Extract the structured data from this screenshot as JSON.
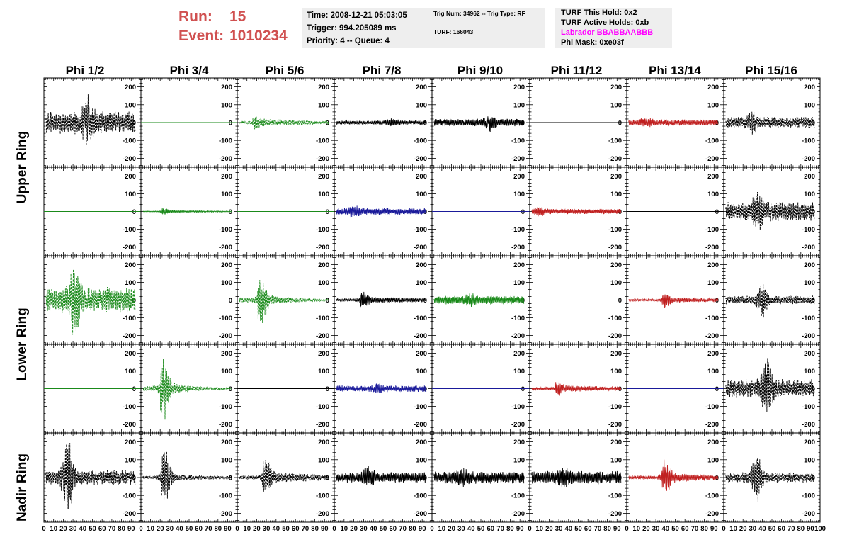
{
  "run": {
    "run_label": "Run:",
    "run_value": "15",
    "event_label": "Event:",
    "event_value": "1010234"
  },
  "info_time": {
    "line1": "Time: 2008-12-21 05:03:05",
    "line2": "Trigger: 994.205089 ms",
    "line3": "Priority: 4 -- Queue: 4"
  },
  "info_trig": {
    "line1": "Trig Num: 34962 -- Trig Type: RF",
    "line2": "TURF: 166043"
  },
  "info_turf": {
    "line1": "TURF This Hold: 0x2",
    "line2": "TURF Active Holds: 0xb",
    "line3": "Labrador BBABBAABBB",
    "line4": "Phi Mask: 0xe03f"
  },
  "colors": {
    "green": "#1a8a1a",
    "black": "#000000",
    "red": "#c02020",
    "blue": "#1a1a9a",
    "run_text": "#d05050",
    "labrador": "#ff00ff",
    "panel_bg": "#eeeeee"
  },
  "chart_data": {
    "type": "line",
    "columns": [
      "Phi 1/2",
      "Phi 3/4",
      "Phi 5/6",
      "Phi 7/8",
      "Phi 9/10",
      "Phi 11/12",
      "Phi 13/14",
      "Phi 15/16"
    ],
    "ring_labels": [
      {
        "text": "Upper Ring",
        "rows": [
          0,
          1
        ]
      },
      {
        "text": "Lower Ring",
        "rows": [
          2,
          3
        ]
      },
      {
        "text": "Nadir Ring",
        "rows": [
          4,
          4
        ]
      }
    ],
    "xlim": [
      0,
      100
    ],
    "ylim": [
      -250,
      250
    ],
    "x_ticks": [
      0,
      10,
      20,
      30,
      40,
      50,
      60,
      70,
      80,
      90,
      100
    ],
    "x_tick_labels": [
      "0",
      "10",
      "20",
      "30",
      "40",
      "50",
      "60",
      "70",
      "80",
      "90",
      "100"
    ],
    "y_ticks": [
      -200,
      -100,
      0,
      100,
      200
    ],
    "y_tick_labels": [
      "-200",
      "-100",
      "0",
      "100",
      "200"
    ],
    "waveforms": [
      [
        {
          "color": "black",
          "style": "dashed",
          "amp": 65,
          "peak": 160,
          "peak_x": 45,
          "decay": 0
        },
        {
          "color": "green",
          "style": "flat"
        },
        {
          "color": "green",
          "style": "dashed",
          "amp": 22,
          "peak": 40,
          "peak_x": 20,
          "decay": 0.2
        },
        {
          "color": "black",
          "style": "solid",
          "amp": 12,
          "peak": 25,
          "peak_x": 60,
          "decay": 0
        },
        {
          "color": "black",
          "style": "solid",
          "amp": 22,
          "peak": 55,
          "peak_x": 60,
          "decay": 0
        },
        {
          "color": "black",
          "style": "flat"
        },
        {
          "color": "red",
          "style": "solid",
          "amp": 18,
          "peak": 35,
          "peak_x": 20,
          "decay": 0
        },
        {
          "color": "black",
          "style": "dashed",
          "amp": 32,
          "peak": 70,
          "peak_x": 30,
          "decay": 0
        }
      ],
      [
        {
          "color": "green",
          "style": "flat"
        },
        {
          "color": "green",
          "style": "solid",
          "amp": 8,
          "peak": 22,
          "peak_x": 25,
          "decay": 0.3
        },
        {
          "color": "green",
          "style": "flat"
        },
        {
          "color": "blue",
          "style": "solid",
          "amp": 20,
          "peak": 40,
          "peak_x": 20,
          "decay": 0
        },
        {
          "color": "blue",
          "style": "flat"
        },
        {
          "color": "red",
          "style": "solid",
          "amp": 15,
          "peak": 30,
          "peak_x": 10,
          "decay": 0
        },
        {
          "color": "black",
          "style": "flat"
        },
        {
          "color": "black",
          "style": "dashed",
          "amp": 55,
          "peak": 125,
          "peak_x": 35,
          "decay": 0
        }
      ],
      [
        {
          "color": "green",
          "style": "dashed",
          "amp": 75,
          "peak": 250,
          "peak_x": 32,
          "decay": 0
        },
        {
          "color": "green",
          "style": "flat"
        },
        {
          "color": "green",
          "style": "dashed",
          "amp": 40,
          "peak": 160,
          "peak_x": 25,
          "decay": 0.5
        },
        {
          "color": "black",
          "style": "solid",
          "amp": 22,
          "peak": 60,
          "peak_x": 30,
          "decay": 0.2
        },
        {
          "color": "green",
          "style": "solid",
          "amp": 25,
          "peak": 45,
          "peak_x": 40,
          "decay": 0
        },
        {
          "color": "green",
          "style": "flat"
        },
        {
          "color": "red",
          "style": "solid",
          "amp": 18,
          "peak": 50,
          "peak_x": 40,
          "decay": 0.2
        },
        {
          "color": "black",
          "style": "dashed",
          "amp": 25,
          "peak": 110,
          "peak_x": 40,
          "decay": 0
        }
      ],
      [
        {
          "color": "green",
          "style": "flat"
        },
        {
          "color": "green",
          "style": "dashed",
          "amp": 45,
          "peak": 190,
          "peak_x": 24,
          "decay": 0.55
        },
        {
          "color": "black",
          "style": "flat"
        },
        {
          "color": "blue",
          "style": "solid",
          "amp": 18,
          "peak": 35,
          "peak_x": 45,
          "decay": 0
        },
        {
          "color": "blue",
          "style": "flat"
        },
        {
          "color": "red",
          "style": "solid",
          "amp": 22,
          "peak": 50,
          "peak_x": 30,
          "decay": 0.2
        },
        {
          "color": "blue",
          "style": "flat"
        },
        {
          "color": "black",
          "style": "dashed",
          "amp": 55,
          "peak": 190,
          "peak_x": 45,
          "decay": 0
        }
      ],
      [
        {
          "color": "black",
          "style": "dashed",
          "amp": 45,
          "peak": 230,
          "peak_x": 25,
          "decay": 0
        },
        {
          "color": "black",
          "style": "dashed",
          "amp": 25,
          "peak": 190,
          "peak_x": 25,
          "decay": 0.3
        },
        {
          "color": "black",
          "style": "dashed",
          "amp": 35,
          "peak": 120,
          "peak_x": 30,
          "decay": 0.2
        },
        {
          "color": "black",
          "style": "solid",
          "amp": 30,
          "peak": 70,
          "peak_x": 35,
          "decay": 0
        },
        {
          "color": "black",
          "style": "solid",
          "amp": 35,
          "peak": 65,
          "peak_x": 30,
          "decay": 0
        },
        {
          "color": "black",
          "style": "solid",
          "amp": 38,
          "peak": 75,
          "peak_x": 35,
          "decay": 0
        },
        {
          "color": "red",
          "style": "solid",
          "amp": 30,
          "peak": 110,
          "peak_x": 40,
          "decay": 0.2
        },
        {
          "color": "black",
          "style": "dashed",
          "amp": 30,
          "peak": 150,
          "peak_x": 35,
          "decay": 0
        }
      ]
    ]
  }
}
